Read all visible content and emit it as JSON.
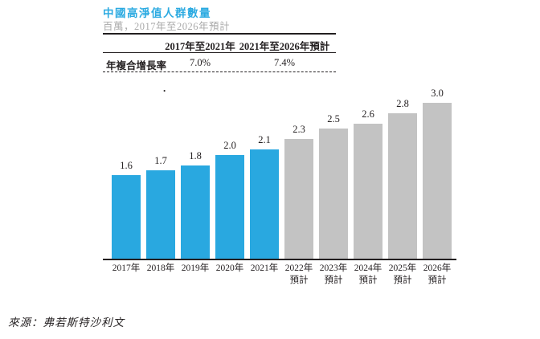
{
  "title": "中國高淨值人群數量",
  "subtitle": "百萬，2017年至2026年預計",
  "cagr_table": {
    "columns": [
      "2017年至2021年",
      "2021年至2026年預計"
    ],
    "row_label": "年複合增長率",
    "values": [
      "7.0%",
      "7.4%"
    ]
  },
  "stray_mark": ".",
  "source": "來源：弗若斯特沙利文",
  "colors": {
    "title_blue": "#2baae1",
    "bar_blue": "#29a8e0",
    "bar_gray": "#c3c3c3",
    "subtitle_gray": "#a9a9a9",
    "line_black": "#231f20"
  },
  "chart_data": {
    "type": "bar",
    "title": "中國高淨值人群數量",
    "ylabel": "百萬",
    "categories": [
      "2017年",
      "2018年",
      "2019年",
      "2020年",
      "2021年",
      "2022年",
      "2023年",
      "2024年",
      "2025年",
      "2026年"
    ],
    "values": [
      1.6,
      1.7,
      1.8,
      2.0,
      2.1,
      2.3,
      2.5,
      2.6,
      2.8,
      3.0
    ],
    "forecast_start_index": 5,
    "forecast_suffix": "預計",
    "bar_color_actual": "#29a8e0",
    "bar_color_forecast": "#c3c3c3",
    "ylim": [
      0,
      3.1
    ],
    "grid": false,
    "data_labels": true,
    "legend_position": "none"
  }
}
